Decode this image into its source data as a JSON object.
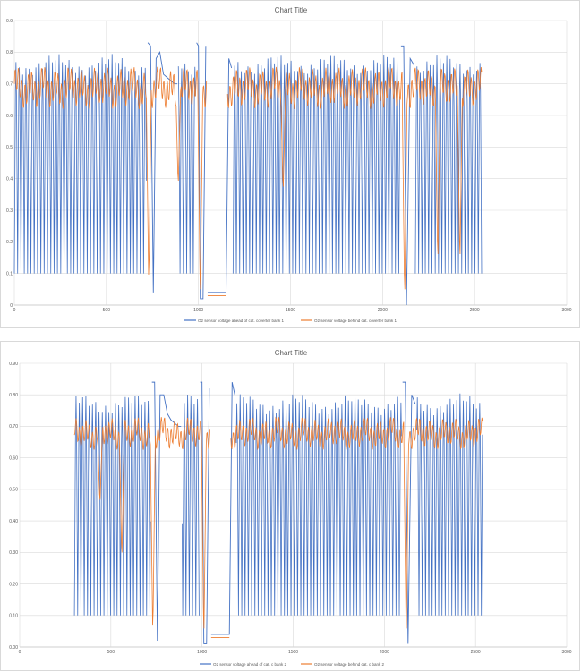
{
  "chart_data": [
    {
      "type": "line",
      "title": "Chart Title",
      "xlim": [
        0,
        3000
      ],
      "ylim": [
        0,
        0.9
      ],
      "x_ticks": [
        "0",
        "500",
        "1000",
        "1500",
        "2000",
        "2500",
        "3000"
      ],
      "y_ticks": [
        "0",
        "0.1",
        "0.2",
        "0.3",
        "0.4",
        "0.5",
        "0.6",
        "0.7",
        "0.8",
        "0.9"
      ],
      "grid": true,
      "legend_position": "bottom",
      "series": [
        {
          "name": "O2 sensor voltage ahead of cat. coverter bank 1",
          "color": "#4472c4",
          "oscillation": {
            "x_start": 0,
            "x_end": 2540,
            "period": 18,
            "low": 0.1,
            "high": 0.76
          },
          "segments": [
            {
              "x": [
                725,
                740,
                755,
                770,
                790,
                810,
                830,
                850,
                870,
                885
              ],
              "y": [
                0.83,
                0.82,
                0.04,
                0.78,
                0.8,
                0.73,
                0.72,
                0.71,
                0.7,
                0.7
              ]
            },
            {
              "x": [
                990,
                1000,
                1010,
                1025,
                1040
              ],
              "y": [
                0.83,
                0.82,
                0.02,
                0.02,
                0.82
              ]
            },
            {
              "x": [
                1050,
                1080,
                1120,
                1150,
                1165,
                1180
              ],
              "y": [
                0.04,
                0.04,
                0.04,
                0.04,
                0.78,
                0.75
              ]
            },
            {
              "x": [
                2100,
                2115,
                2130,
                2150,
                2170
              ],
              "y": [
                0.82,
                0.82,
                0.0,
                0.78,
                0.76
              ]
            }
          ]
        },
        {
          "name": "O2 sensor voltage behind cat. coverter bank 1",
          "color": "#ed7d31",
          "baseline": {
            "x_start": 0,
            "x_end": 2540,
            "mean": 0.7,
            "ripple": 0.04
          },
          "dips": [
            {
              "x": 730,
              "y": 0.05
            },
            {
              "x": 890,
              "y": 0.37
            },
            {
              "x": 1010,
              "y": 0.0
            },
            {
              "x": 1460,
              "y": 0.35
            },
            {
              "x": 2120,
              "y": 0.0
            },
            {
              "x": 2300,
              "y": 0.12
            },
            {
              "x": 2420,
              "y": 0.12
            }
          ],
          "segments": [
            {
              "x": [
                1050,
                1080,
                1120,
                1150
              ],
              "y": [
                0.03,
                0.03,
                0.03,
                0.03
              ]
            }
          ]
        }
      ]
    },
    {
      "type": "line",
      "title": "Chart Title",
      "xlim": [
        0,
        3000
      ],
      "ylim": [
        0,
        0.9
      ],
      "x_ticks": [
        "0",
        "500",
        "1000",
        "1500",
        "2000",
        "2500",
        "3000"
      ],
      "y_ticks": [
        "0.00",
        "0.10",
        "0.20",
        "0.30",
        "0.40",
        "0.50",
        "0.60",
        "0.70",
        "0.80",
        "0.90"
      ],
      "grid": true,
      "legend_position": "bottom",
      "series": [
        {
          "name": "O2 sensor voltage ahead of cat. c bank 2",
          "color": "#4472c4",
          "oscillation": {
            "x_start": 300,
            "x_end": 2540,
            "period": 18,
            "low": 0.1,
            "high": 0.77
          },
          "segments": [
            {
              "x": [
                725,
                740,
                755,
                770,
                790,
                810,
                830,
                850,
                870,
                885
              ],
              "y": [
                0.84,
                0.84,
                0.02,
                0.8,
                0.8,
                0.74,
                0.72,
                0.71,
                0.7,
                0.7
              ]
            },
            {
              "x": [
                990,
                1000,
                1010,
                1025,
                1040
              ],
              "y": [
                0.84,
                0.84,
                0.01,
                0.01,
                0.82
              ]
            },
            {
              "x": [
                1050,
                1080,
                1120,
                1150,
                1165,
                1180
              ],
              "y": [
                0.04,
                0.04,
                0.04,
                0.04,
                0.84,
                0.8
              ]
            },
            {
              "x": [
                2100,
                2115,
                2130,
                2150,
                2170
              ],
              "y": [
                0.84,
                0.84,
                0.01,
                0.8,
                0.77
              ]
            }
          ]
        },
        {
          "name": "O2 sensor voltage behind cat. c bank 2",
          "color": "#ed7d31",
          "baseline": {
            "x_start": 300,
            "x_end": 2540,
            "mean": 0.69,
            "ripple": 0.03
          },
          "dips": [
            {
              "x": 440,
              "y": 0.45
            },
            {
              "x": 560,
              "y": 0.27
            },
            {
              "x": 730,
              "y": 0.02
            },
            {
              "x": 1010,
              "y": 0.01
            },
            {
              "x": 2120,
              "y": 0.01
            }
          ],
          "segments": [
            {
              "x": [
                1050,
                1080,
                1120,
                1150
              ],
              "y": [
                0.03,
                0.03,
                0.03,
                0.03
              ]
            }
          ]
        }
      ]
    }
  ]
}
